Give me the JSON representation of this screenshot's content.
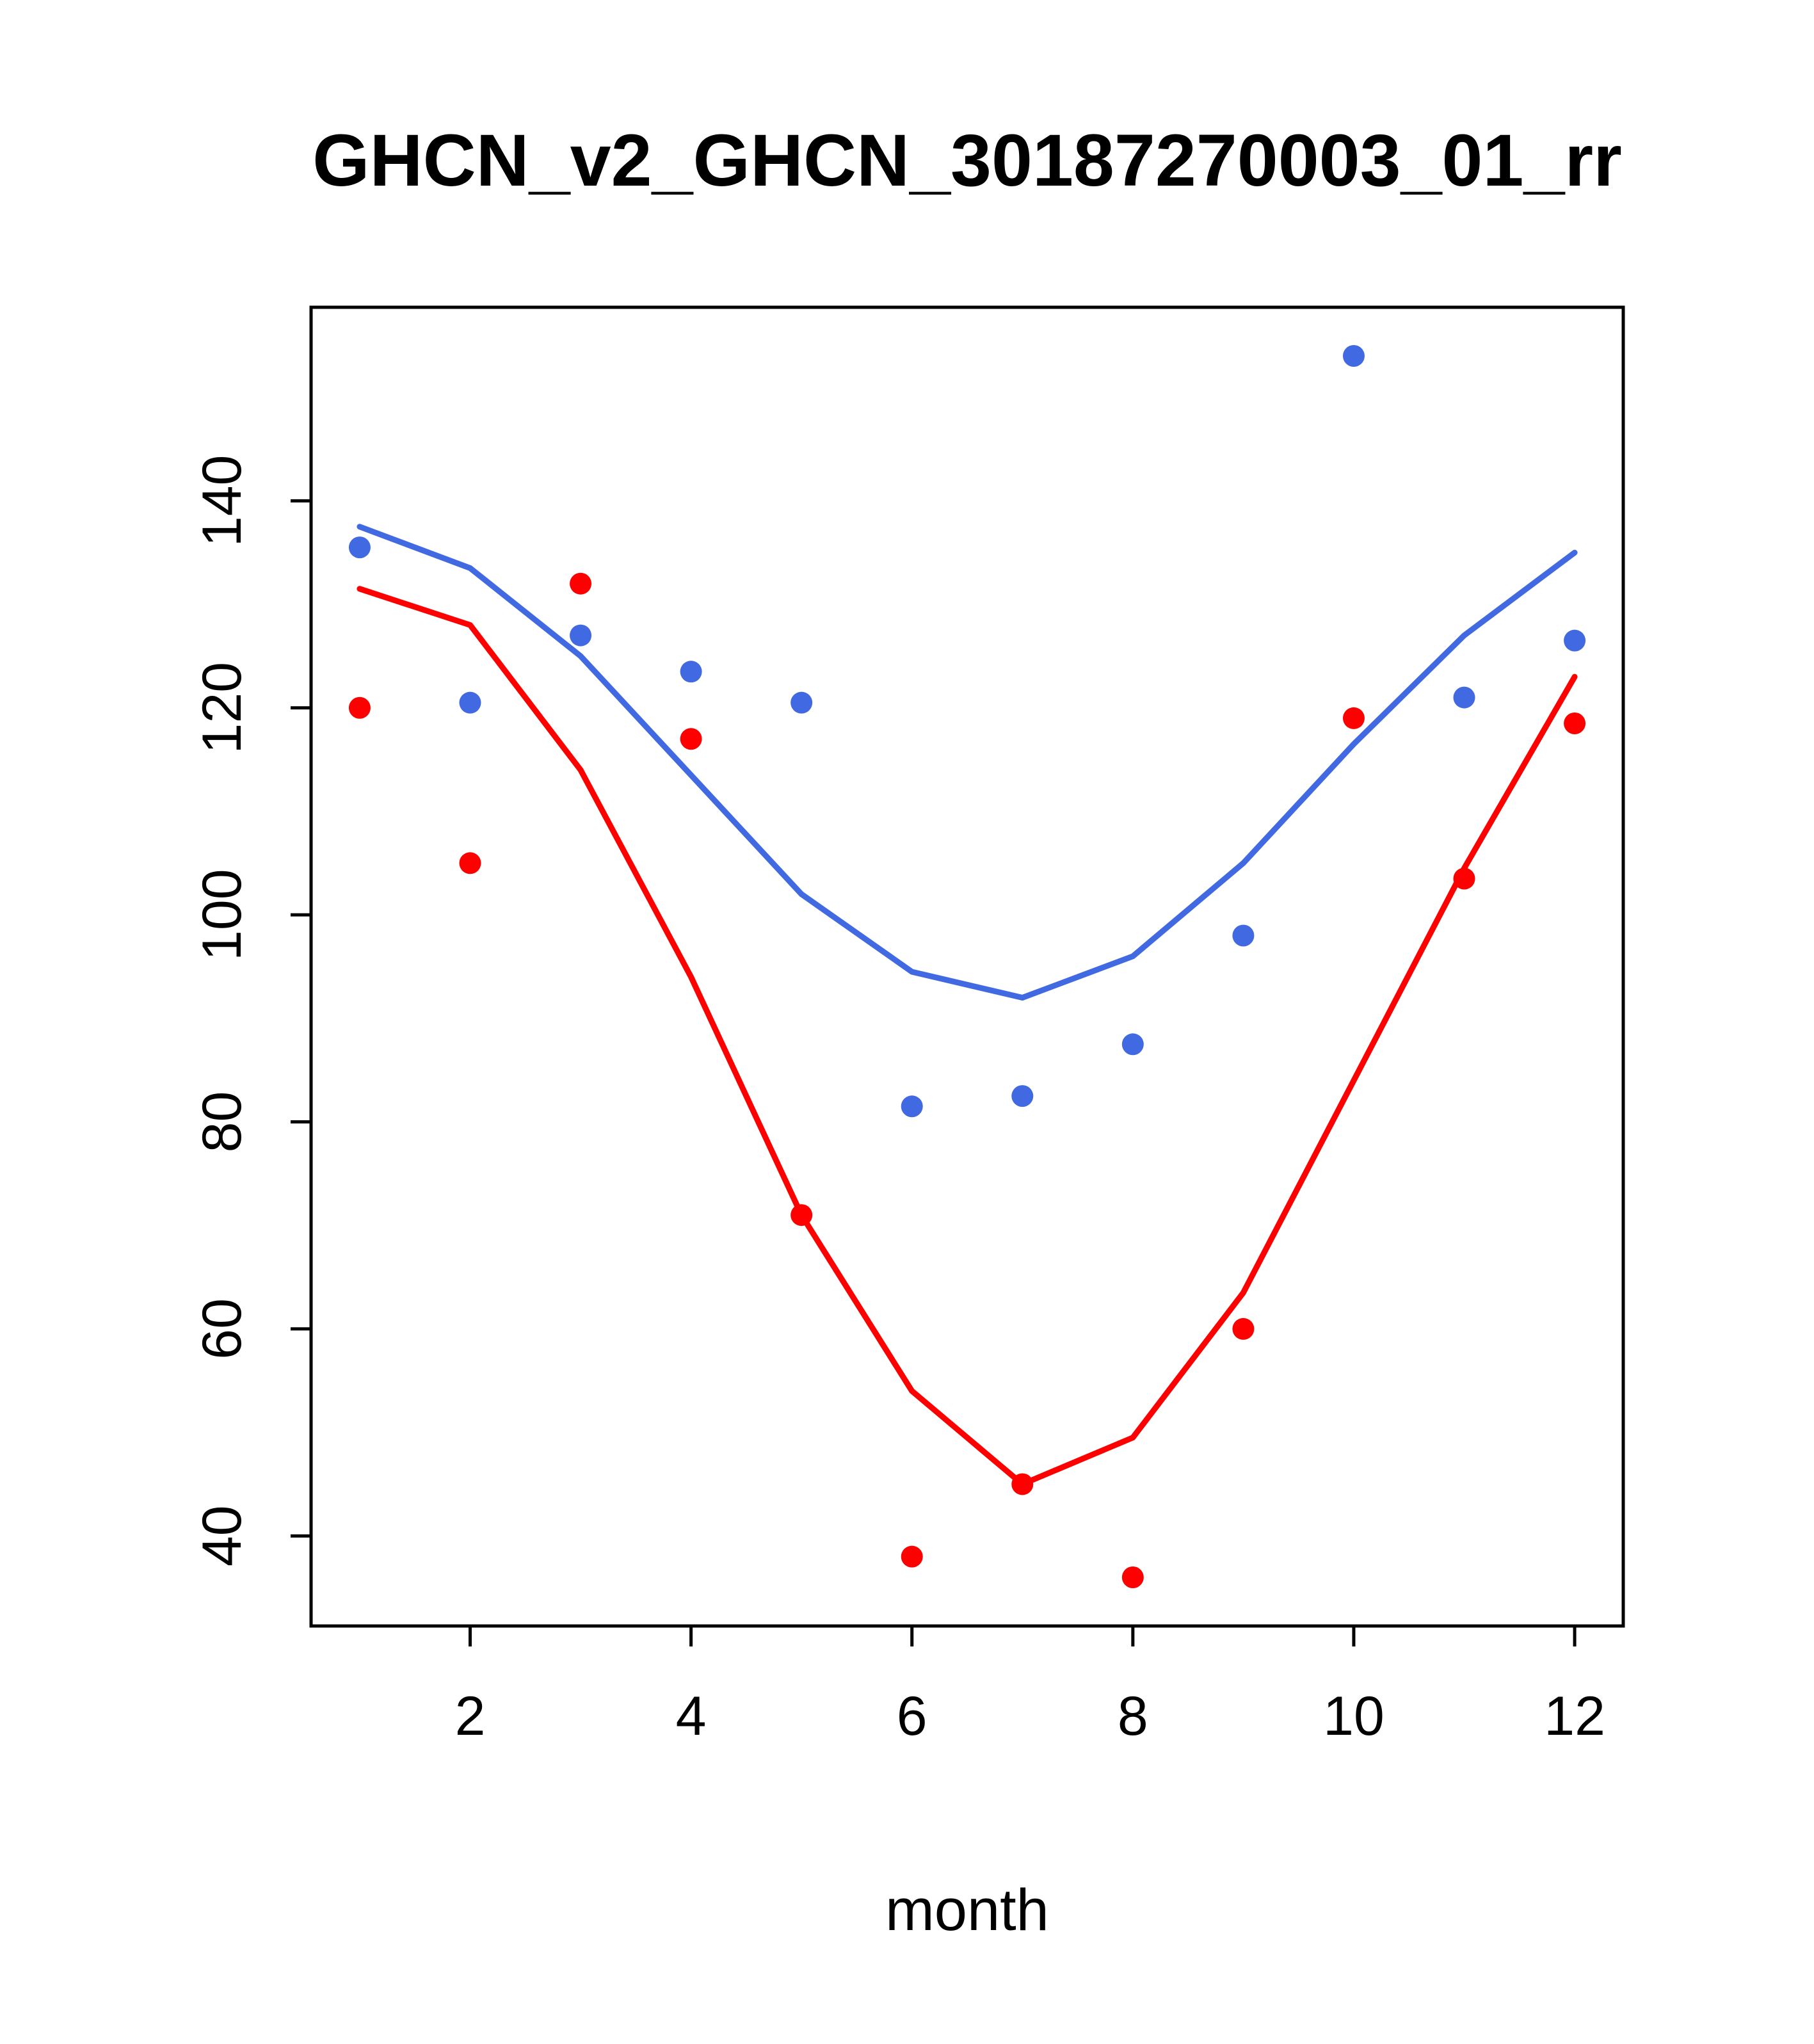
{
  "title": "GHCN_v2_GHCN_30187270003_01_rr",
  "chart_data": {
    "type": "line",
    "title": "GHCN_v2_GHCN_30187270003_01_rr",
    "xlabel": "month",
    "ylabel": "",
    "x": [
      1,
      2,
      3,
      4,
      5,
      6,
      7,
      8,
      9,
      10,
      11,
      12
    ],
    "xticks": [
      2,
      4,
      6,
      8,
      10,
      12
    ],
    "yticks": [
      40,
      60,
      80,
      100,
      120,
      140
    ],
    "xlim": [
      0.56,
      12.44
    ],
    "ylim": [
      31.3,
      158.7
    ],
    "grid": false,
    "legend": "none",
    "colors": {
      "blue": "#4169E1",
      "red": "#FF0000",
      "frame": "#000000"
    },
    "series": [
      {
        "name": "blue-line",
        "style": "line",
        "color": "#4169E1",
        "values": [
          137.5,
          133.5,
          125.0,
          113.5,
          102.0,
          94.5,
          92.0,
          96.0,
          105.0,
          116.5,
          127.0,
          135.0
        ]
      },
      {
        "name": "red-line",
        "style": "line",
        "color": "#FF0000",
        "values": [
          131.5,
          128.0,
          114.0,
          94.0,
          71.0,
          54.0,
          45.0,
          49.5,
          63.5,
          84.0,
          104.5,
          123.0
        ]
      },
      {
        "name": "blue-points",
        "style": "scatter",
        "color": "#4169E1",
        "values": [
          135.5,
          120.5,
          127.0,
          123.5,
          120.5,
          81.5,
          82.5,
          87.5,
          98.0,
          154.0,
          121.0,
          126.5
        ]
      },
      {
        "name": "red-points",
        "style": "scatter",
        "color": "#FF0000",
        "values": [
          120.0,
          105.0,
          132.0,
          117.0,
          71.0,
          38.0,
          45.0,
          36.0,
          60.0,
          119.0,
          103.5,
          118.5
        ]
      }
    ]
  }
}
